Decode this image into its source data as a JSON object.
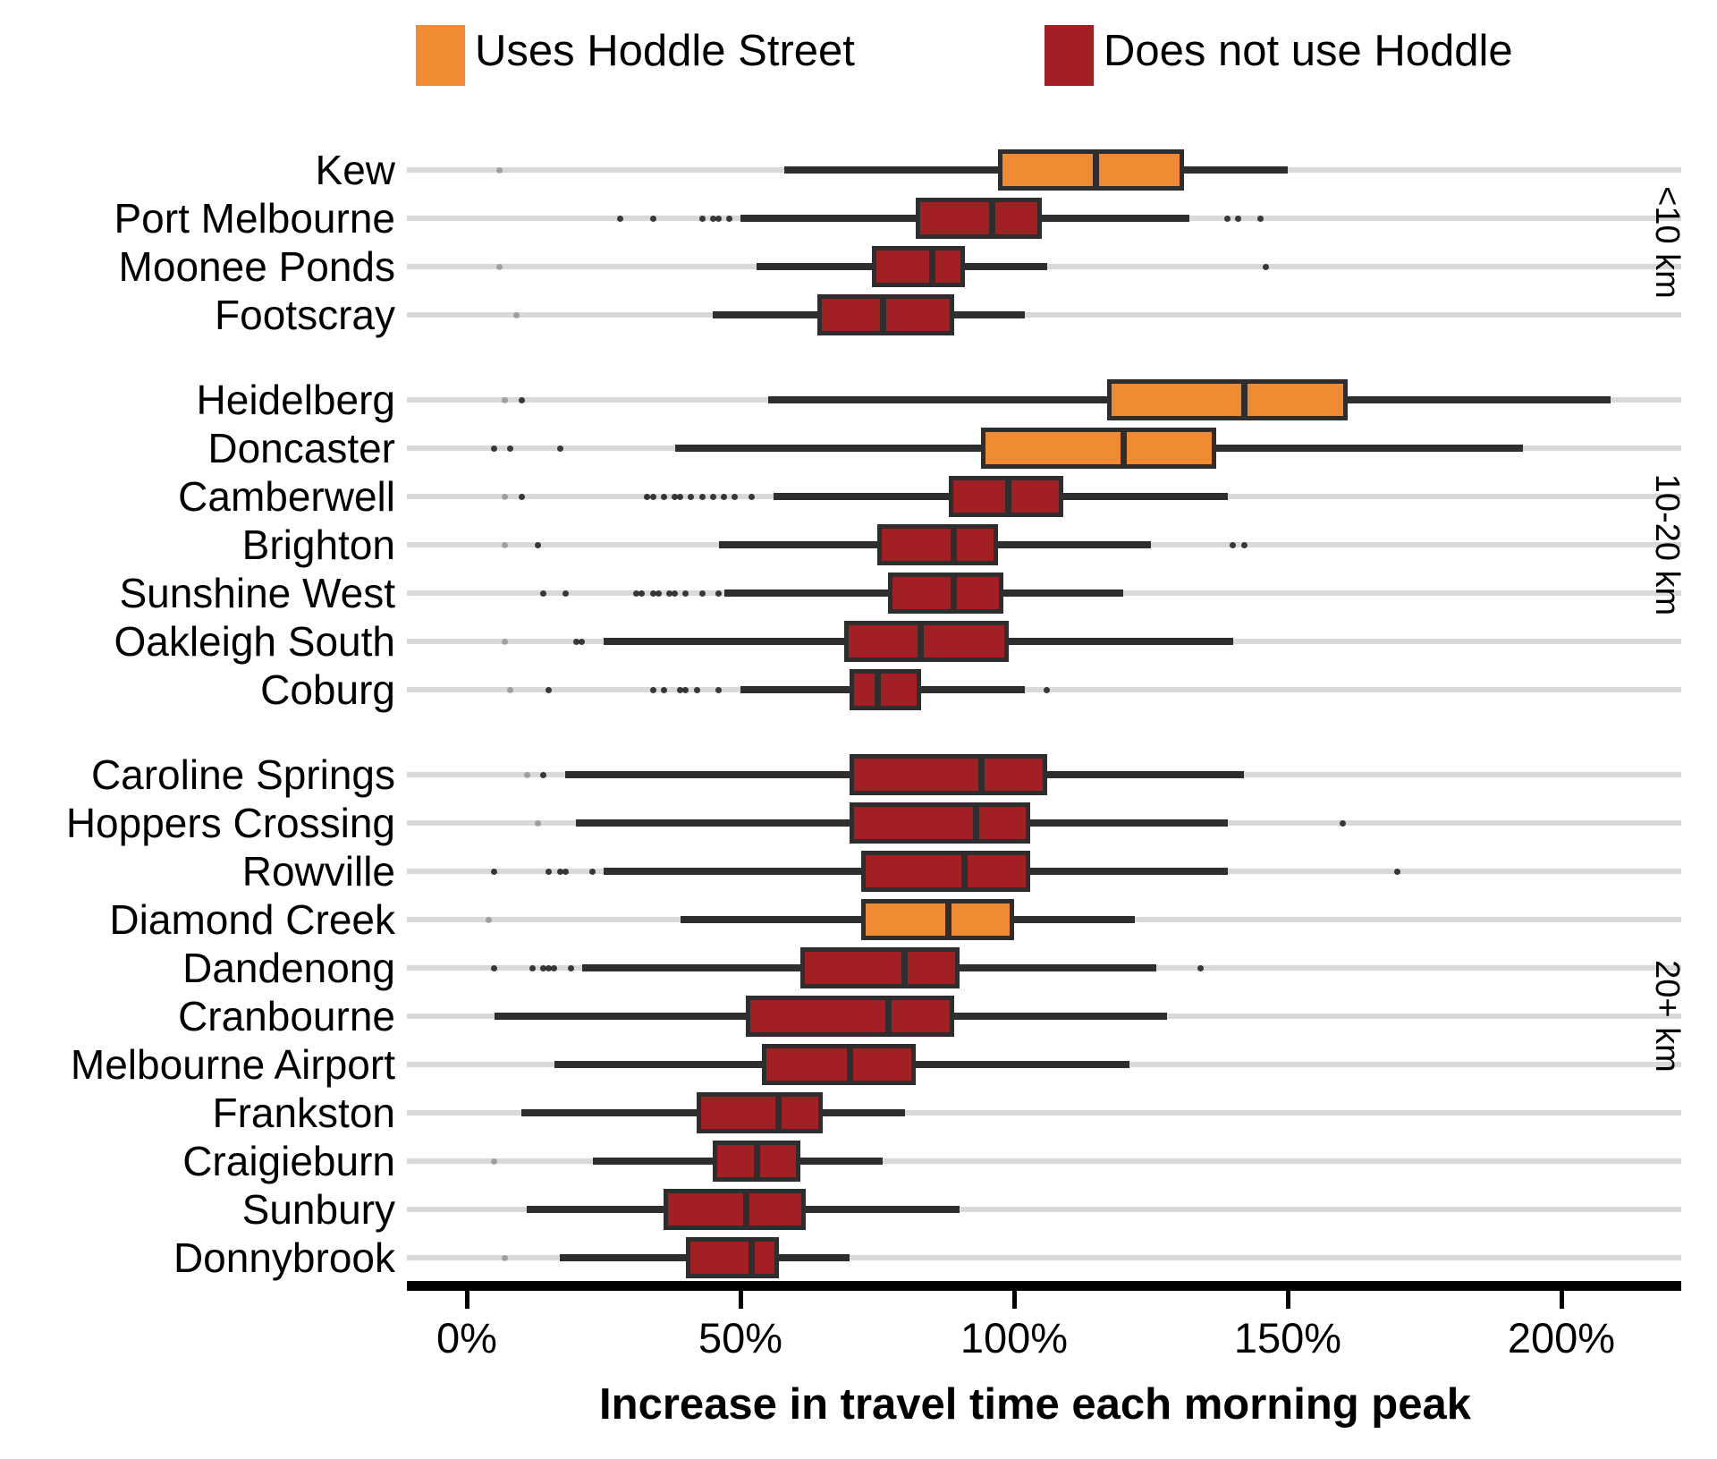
{
  "legend": {
    "items": [
      {
        "label": "Uses Hoddle Street",
        "color": "#F08B33"
      },
      {
        "label": "Does not use Hoddle",
        "color": "#A21F24"
      }
    ]
  },
  "axis": {
    "title": "Increase in travel time each morning peak"
  },
  "chart_data": {
    "type": "boxplot",
    "orientation": "horizontal",
    "xlabel": "Increase in travel time each morning peak",
    "x_tick_labels": [
      "0%",
      "50%",
      "100%",
      "150%",
      "200%"
    ],
    "x_tick_values": [
      0,
      50,
      100,
      150,
      200
    ],
    "xlim": [
      -11,
      222
    ],
    "unit": "percent increase in travel time",
    "legend_position": "top",
    "grid": "horizontal-row-lines",
    "series_legend": [
      "Uses Hoddle Street",
      "Does not use Hoddle"
    ],
    "colors": {
      "uses_hoddle": "#F08B33",
      "not_hoddle": "#A21F24",
      "stroke": "#2E2E2E",
      "gridline": "#D9D9D9",
      "outlier": "#1A1A1A",
      "axis": "#000000"
    },
    "groups": [
      {
        "label": "<10 km",
        "rows": [
          {
            "label": "Kew",
            "series": "Uses Hoddle Street",
            "whisker_low": 58,
            "q1": 97,
            "median": 115,
            "q3": 131,
            "whisker_high": 150,
            "outliers": [
              {
                "v": 6,
                "faint": true
              }
            ]
          },
          {
            "label": "Port Melbourne",
            "series": "Does not use Hoddle",
            "whisker_low": 50,
            "q1": 82,
            "median": 96,
            "q3": 105,
            "whisker_high": 132,
            "outliers": [
              {
                "v": 28
              },
              {
                "v": 34
              },
              {
                "v": 43
              },
              {
                "v": 45
              },
              {
                "v": 46
              },
              {
                "v": 48
              },
              {
                "v": 139
              },
              {
                "v": 141
              },
              {
                "v": 145
              }
            ]
          },
          {
            "label": "Moonee Ponds",
            "series": "Does not use Hoddle",
            "whisker_low": 53,
            "q1": 74,
            "median": 85,
            "q3": 91,
            "whisker_high": 106,
            "outliers": [
              {
                "v": 6,
                "faint": true
              },
              {
                "v": 146
              }
            ]
          },
          {
            "label": "Footscray",
            "series": "Does not use Hoddle",
            "whisker_low": 45,
            "q1": 64,
            "median": 76,
            "q3": 89,
            "whisker_high": 102,
            "outliers": [
              {
                "v": 9,
                "faint": true
              }
            ]
          }
        ]
      },
      {
        "label": "10-20 km",
        "rows": [
          {
            "label": "Heidelberg",
            "series": "Uses Hoddle Street",
            "whisker_low": 55,
            "q1": 117,
            "median": 142,
            "q3": 161,
            "whisker_high": 209,
            "outliers": [
              {
                "v": 7,
                "faint": true
              },
              {
                "v": 10
              }
            ]
          },
          {
            "label": "Doncaster",
            "series": "Uses Hoddle Street",
            "whisker_low": 38,
            "q1": 94,
            "median": 120,
            "q3": 137,
            "whisker_high": 193,
            "outliers": [
              {
                "v": 5
              },
              {
                "v": 8
              },
              {
                "v": 17
              }
            ]
          },
          {
            "label": "Camberwell",
            "series": "Does not use Hoddle",
            "whisker_low": 56,
            "q1": 88,
            "median": 99,
            "q3": 109,
            "whisker_high": 139,
            "outliers": [
              {
                "v": 7,
                "faint": true
              },
              {
                "v": 10
              },
              {
                "v": 33
              },
              {
                "v": 34
              },
              {
                "v": 36
              },
              {
                "v": 38
              },
              {
                "v": 39
              },
              {
                "v": 41
              },
              {
                "v": 43
              },
              {
                "v": 45
              },
              {
                "v": 47
              },
              {
                "v": 49
              },
              {
                "v": 52
              }
            ]
          },
          {
            "label": "Brighton",
            "series": "Does not use Hoddle",
            "whisker_low": 46,
            "q1": 75,
            "median": 89,
            "q3": 97,
            "whisker_high": 125,
            "outliers": [
              {
                "v": 7,
                "faint": true
              },
              {
                "v": 13
              },
              {
                "v": 140
              },
              {
                "v": 142
              }
            ]
          },
          {
            "label": "Sunshine West",
            "series": "Does not use Hoddle",
            "whisker_low": 47,
            "q1": 77,
            "median": 89,
            "q3": 98,
            "whisker_high": 120,
            "outliers": [
              {
                "v": 14
              },
              {
                "v": 18
              },
              {
                "v": 31
              },
              {
                "v": 32
              },
              {
                "v": 34
              },
              {
                "v": 35
              },
              {
                "v": 37
              },
              {
                "v": 38
              },
              {
                "v": 40
              },
              {
                "v": 43
              },
              {
                "v": 46
              }
            ]
          },
          {
            "label": "Oakleigh South",
            "series": "Does not use Hoddle",
            "whisker_low": 25,
            "q1": 69,
            "median": 83,
            "q3": 99,
            "whisker_high": 140,
            "outliers": [
              {
                "v": 7,
                "faint": true
              },
              {
                "v": 20
              },
              {
                "v": 21
              }
            ]
          },
          {
            "label": "Coburg",
            "series": "Does not use Hoddle",
            "whisker_low": 50,
            "q1": 70,
            "median": 75,
            "q3": 83,
            "whisker_high": 102,
            "outliers": [
              {
                "v": 8,
                "faint": true
              },
              {
                "v": 15
              },
              {
                "v": 34
              },
              {
                "v": 36
              },
              {
                "v": 39
              },
              {
                "v": 40
              },
              {
                "v": 42
              },
              {
                "v": 46
              },
              {
                "v": 106
              }
            ]
          }
        ]
      },
      {
        "label": "20+ km",
        "rows": [
          {
            "label": "Caroline Springs",
            "series": "Does not use Hoddle",
            "whisker_low": 18,
            "q1": 70,
            "median": 94,
            "q3": 106,
            "whisker_high": 142,
            "outliers": [
              {
                "v": 11,
                "faint": true
              },
              {
                "v": 14
              }
            ]
          },
          {
            "label": "Hoppers Crossing",
            "series": "Does not use Hoddle",
            "whisker_low": 20,
            "q1": 70,
            "median": 93,
            "q3": 103,
            "whisker_high": 139,
            "outliers": [
              {
                "v": 13,
                "faint": true
              },
              {
                "v": 160
              }
            ]
          },
          {
            "label": "Rowville",
            "series": "Does not use Hoddle",
            "whisker_low": 25,
            "q1": 72,
            "median": 91,
            "q3": 103,
            "whisker_high": 139,
            "outliers": [
              {
                "v": 5
              },
              {
                "v": 15
              },
              {
                "v": 17
              },
              {
                "v": 18
              },
              {
                "v": 23
              },
              {
                "v": 170
              }
            ]
          },
          {
            "label": "Diamond Creek",
            "series": "Uses Hoddle Street",
            "whisker_low": 39,
            "q1": 72,
            "median": 88,
            "q3": 100,
            "whisker_high": 122,
            "outliers": [
              {
                "v": 4,
                "faint": true
              }
            ]
          },
          {
            "label": "Dandenong",
            "series": "Does not use Hoddle",
            "whisker_low": 21,
            "q1": 61,
            "median": 80,
            "q3": 90,
            "whisker_high": 126,
            "outliers": [
              {
                "v": 5
              },
              {
                "v": 12
              },
              {
                "v": 14
              },
              {
                "v": 15
              },
              {
                "v": 16
              },
              {
                "v": 19
              },
              {
                "v": 134
              }
            ]
          },
          {
            "label": "Cranbourne",
            "series": "Does not use Hoddle",
            "whisker_low": 5,
            "q1": 51,
            "median": 77,
            "q3": 89,
            "whisker_high": 128,
            "outliers": []
          },
          {
            "label": "Melbourne Airport",
            "series": "Does not use Hoddle",
            "whisker_low": 16,
            "q1": 54,
            "median": 70,
            "q3": 82,
            "whisker_high": 121,
            "outliers": []
          },
          {
            "label": "Frankston",
            "series": "Does not use Hoddle",
            "whisker_low": 10,
            "q1": 42,
            "median": 57,
            "q3": 65,
            "whisker_high": 80,
            "outliers": []
          },
          {
            "label": "Craigieburn",
            "series": "Does not use Hoddle",
            "whisker_low": 23,
            "q1": 45,
            "median": 53,
            "q3": 61,
            "whisker_high": 76,
            "outliers": [
              {
                "v": 5,
                "faint": true
              }
            ]
          },
          {
            "label": "Sunbury",
            "series": "Does not use Hoddle",
            "whisker_low": 11,
            "q1": 36,
            "median": 51,
            "q3": 62,
            "whisker_high": 90,
            "outliers": []
          },
          {
            "label": "Donnybrook",
            "series": "Does not use Hoddle",
            "whisker_low": 17,
            "q1": 40,
            "median": 52,
            "q3": 57,
            "whisker_high": 70,
            "outliers": [
              {
                "v": 7,
                "faint": true
              }
            ]
          }
        ]
      }
    ]
  }
}
